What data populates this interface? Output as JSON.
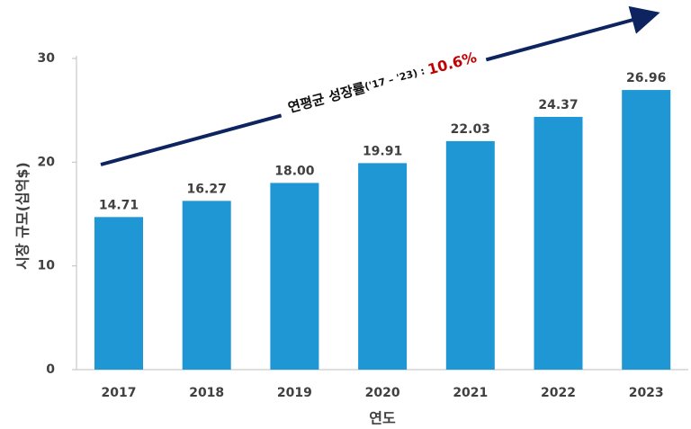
{
  "chart_data": {
    "type": "bar",
    "categories": [
      "2017",
      "2018",
      "2019",
      "2020",
      "2021",
      "2022",
      "2023"
    ],
    "values": [
      14.71,
      16.27,
      18.0,
      19.91,
      22.03,
      24.37,
      26.96
    ],
    "value_labels": [
      "14.71",
      "16.27",
      "18.00",
      "19.91",
      "22.03",
      "24.37",
      "26.96"
    ],
    "color": "#1f97d4",
    "ylim": [
      0,
      30
    ],
    "yticks": [
      0,
      10,
      20,
      30
    ],
    "x_label": "연도",
    "y_label": "시장 규모(십억$)",
    "annotation": {
      "label": "연평균 성장률",
      "period": "('17 – '23) :",
      "value": "10.6%"
    },
    "grid": false
  }
}
